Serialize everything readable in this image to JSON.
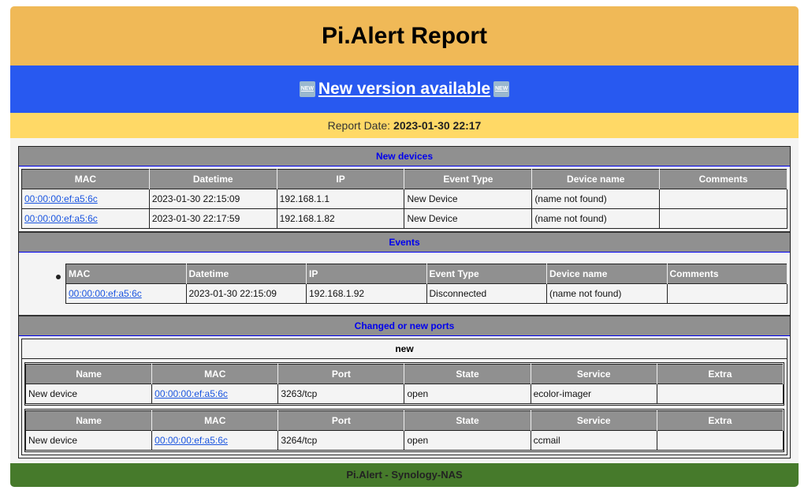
{
  "header": {
    "title": "Pi.Alert Report"
  },
  "banner": {
    "icon": "new-button-emoji",
    "label": " New version available ",
    "icon_text": "NEW"
  },
  "report": {
    "label": "Report Date:",
    "date": "2023-01-30 22:17"
  },
  "new_devices": {
    "title": "New devices",
    "columns": [
      "MAC",
      "Datetime",
      "IP",
      "Event Type",
      "Device name",
      "Comments"
    ],
    "rows": [
      [
        "00:00:00:ef:a5:6c",
        "2023-01-30 22:15:09",
        "192.168.1.1",
        "New Device",
        "(name not found)",
        ""
      ],
      [
        "00:00:00:ef:a5:6c",
        "2023-01-30 22:17:59",
        "192.168.1.82",
        "New Device",
        "(name not found)",
        ""
      ]
    ]
  },
  "events": {
    "title": "Events",
    "columns": [
      "MAC",
      "Datetime",
      "IP",
      "Event Type",
      "Device name",
      "Comments"
    ],
    "rows": [
      [
        "00:00:00:ef:a5:6c",
        "2023-01-30 22:15:09",
        "192.168.1.92",
        "Disconnected",
        "(name not found)",
        ""
      ]
    ]
  },
  "ports": {
    "title": "Changed or new ports",
    "group": "new",
    "columns": [
      "Name",
      "MAC",
      "Port",
      "State",
      "Service",
      "Extra"
    ],
    "tables": [
      [
        [
          "New device",
          "00:00:00:ef:a5:6c",
          "3263/tcp",
          "open",
          "ecolor-imager",
          ""
        ]
      ],
      [
        [
          "New device",
          "00:00:00:ef:a5:6c",
          "3264/tcp",
          "open",
          "ccmail",
          ""
        ]
      ]
    ]
  },
  "footer": {
    "text": "Pi.Alert - Synology-NAS"
  },
  "colors": {
    "header": "#F0B957",
    "banner": "#2859F0",
    "date_bar": "#FFD966",
    "footer": "#467A2B",
    "table_header": "#909090",
    "section_title": "#0000EE"
  }
}
